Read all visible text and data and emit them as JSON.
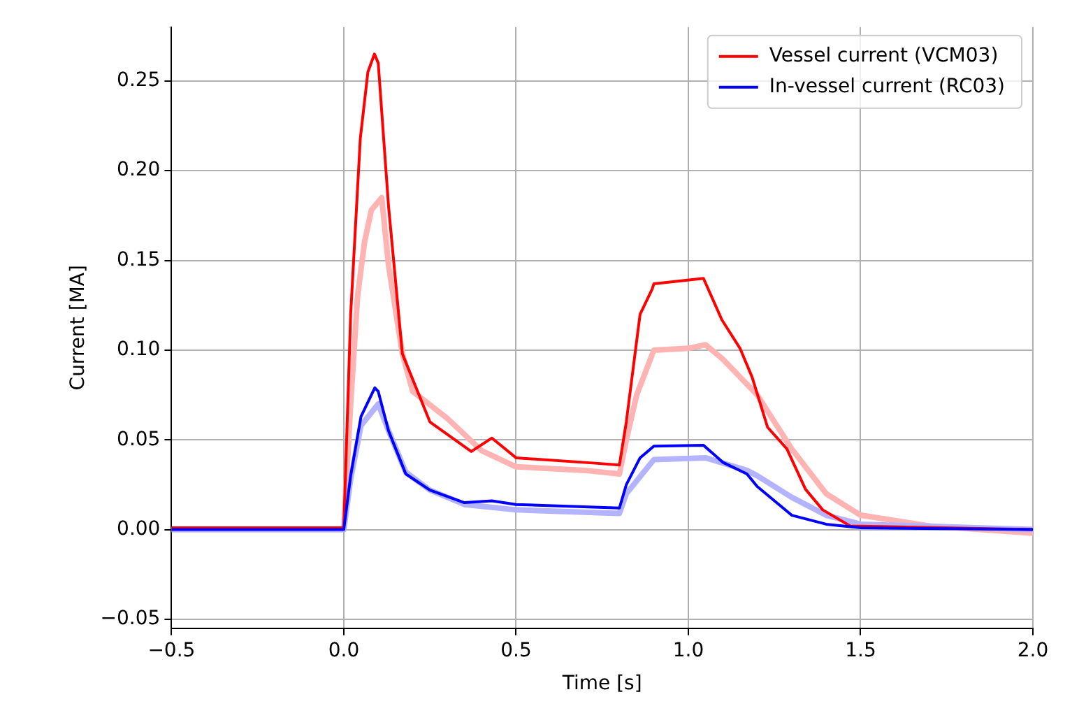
{
  "chart_data": {
    "type": "line",
    "xlabel": "Time [s]",
    "ylabel": "Current [MA]",
    "xlim": [
      -0.5,
      2.0
    ],
    "ylim": [
      -0.055,
      0.28
    ],
    "xticks": [
      {
        "value": -0.5,
        "label": "−0.5"
      },
      {
        "value": 0,
        "label": "0.0"
      },
      {
        "value": 0.5,
        "label": "0.5"
      },
      {
        "value": 1,
        "label": "1.0"
      },
      {
        "value": 1.5,
        "label": "1.5"
      },
      {
        "value": 2,
        "label": "2.0"
      }
    ],
    "yticks": [
      {
        "value": -0.05,
        "label": "−0.05"
      },
      {
        "value": 0,
        "label": "0.00"
      },
      {
        "value": 0.05,
        "label": "0.05"
      },
      {
        "value": 0.1,
        "label": "0.10"
      },
      {
        "value": 0.15,
        "label": "0.15"
      },
      {
        "value": 0.2,
        "label": "0.20"
      },
      {
        "value": 0.25,
        "label": "0.25"
      }
    ],
    "grid": true,
    "legend": "top right",
    "marker": "none",
    "line_style": "solid",
    "series": [
      {
        "color": "#ffb3b3",
        "x": [
          -0.5,
          -0.2,
          0,
          0.02,
          0.04,
          0.06,
          0.08,
          0.11,
          0.13,
          0.17,
          0.2,
          0.3,
          0.4,
          0.5,
          0.7,
          0.8,
          0.82,
          0.85,
          0.9,
          1.0,
          1.05,
          1.1,
          1.2,
          1.3,
          1.4,
          1.5,
          1.7,
          2.0
        ],
        "values": [
          0,
          0,
          0,
          0.07,
          0.13,
          0.16,
          0.178,
          0.185,
          0.147,
          0.098,
          0.077,
          0.062,
          0.044,
          0.035,
          0.033,
          0.031,
          0.05,
          0.075,
          0.1,
          0.101,
          0.103,
          0.095,
          0.075,
          0.045,
          0.02,
          0.008,
          0.002,
          -0.002
        ]
      },
      {
        "color": "#b3b3ff",
        "x": [
          -0.5,
          0,
          0.02,
          0.05,
          0.1,
          0.13,
          0.18,
          0.25,
          0.35,
          0.5,
          0.8,
          0.82,
          0.9,
          1.05,
          1.17,
          1.2,
          1.3,
          1.4,
          1.5,
          2.0
        ],
        "values": [
          0,
          0,
          0.028,
          0.058,
          0.07,
          0.055,
          0.032,
          0.022,
          0.014,
          0.011,
          0.009,
          0.02,
          0.039,
          0.04,
          0.033,
          0.03,
          0.018,
          0.008,
          0.003,
          0
        ]
      },
      {
        "name": "Vessel current (VCM03)",
        "color": "#ff0000",
        "x": [
          -0.5,
          0,
          0.02,
          0.048,
          0.07,
          0.089,
          0.1,
          0.13,
          0.17,
          0.25,
          0.37,
          0.43,
          0.5,
          0.73,
          0.8,
          0.82,
          0.86,
          0.895,
          0.9,
          1.044,
          1.097,
          1.15,
          1.185,
          1.23,
          1.286,
          1.34,
          1.39,
          1.47,
          2.0
        ],
        "values": [
          0.001,
          0.001,
          0.12,
          0.218,
          0.255,
          0.265,
          0.26,
          0.18,
          0.098,
          0.06,
          0.0435,
          0.051,
          0.04,
          0.037,
          0.036,
          0.06,
          0.12,
          0.134,
          0.137,
          0.14,
          0.117,
          0.101,
          0.085,
          0.057,
          0.045,
          0.0225,
          0.011,
          0.002,
          0
        ]
      },
      {
        "name": "In-vessel current (RC03)",
        "color": "#0000ff",
        "x": [
          -0.5,
          0,
          0.02,
          0.05,
          0.09,
          0.1,
          0.13,
          0.18,
          0.25,
          0.35,
          0.43,
          0.5,
          0.8,
          0.82,
          0.86,
          0.9,
          1.044,
          1.1,
          1.17,
          1.2,
          1.25,
          1.3,
          1.4,
          1.5,
          2.0
        ],
        "values": [
          0,
          0,
          0.03,
          0.063,
          0.079,
          0.077,
          0.055,
          0.031,
          0.022,
          0.015,
          0.016,
          0.014,
          0.012,
          0.025,
          0.04,
          0.0465,
          0.047,
          0.0375,
          0.031,
          0.024,
          0.016,
          0.008,
          0.003,
          0.001,
          0
        ]
      }
    ]
  }
}
